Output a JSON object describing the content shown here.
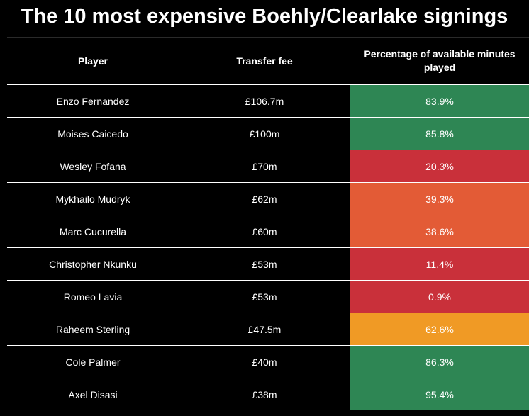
{
  "title": "The 10 most expensive Boehly/Clearlake signings",
  "colors": {
    "background": "#000000",
    "high": "#2e8654",
    "medium": "#f09a25",
    "low_medium": "#e35b36",
    "low": "#c9303a"
  },
  "chart_data": {
    "type": "table",
    "title": "The 10 most expensive Boehly/Clearlake signings",
    "columns": [
      "Player",
      "Transfer fee",
      "Percentage of available minutes played"
    ],
    "rows": [
      {
        "player": "Enzo Fernandez",
        "fee": "£106.7m",
        "pct_label": "83.9%",
        "pct": 83.9,
        "color": "#2e8654"
      },
      {
        "player": "Moises Caicedo",
        "fee": "£100m",
        "pct_label": "85.8%",
        "pct": 85.8,
        "color": "#2e8654"
      },
      {
        "player": "Wesley Fofana",
        "fee": "£70m",
        "pct_label": "20.3%",
        "pct": 20.3,
        "color": "#c9303a"
      },
      {
        "player": "Mykhailo Mudryk",
        "fee": "£62m",
        "pct_label": "39.3%",
        "pct": 39.3,
        "color": "#e35b36"
      },
      {
        "player": "Marc Cucurella",
        "fee": "£60m",
        "pct_label": "38.6%",
        "pct": 38.6,
        "color": "#e35b36"
      },
      {
        "player": "Christopher Nkunku",
        "fee": "£53m",
        "pct_label": "11.4%",
        "pct": 11.4,
        "color": "#c9303a"
      },
      {
        "player": "Romeo Lavia",
        "fee": "£53m",
        "pct_label": "0.9%",
        "pct": 0.9,
        "color": "#c9303a"
      },
      {
        "player": "Raheem Sterling",
        "fee": "£47.5m",
        "pct_label": "62.6%",
        "pct": 62.6,
        "color": "#f09a25"
      },
      {
        "player": "Cole Palmer",
        "fee": "£40m",
        "pct_label": "86.3%",
        "pct": 86.3,
        "color": "#2e8654"
      },
      {
        "player": "Axel Disasi",
        "fee": "£38m",
        "pct_label": "95.4%",
        "pct": 95.4,
        "color": "#2e8654"
      }
    ]
  }
}
